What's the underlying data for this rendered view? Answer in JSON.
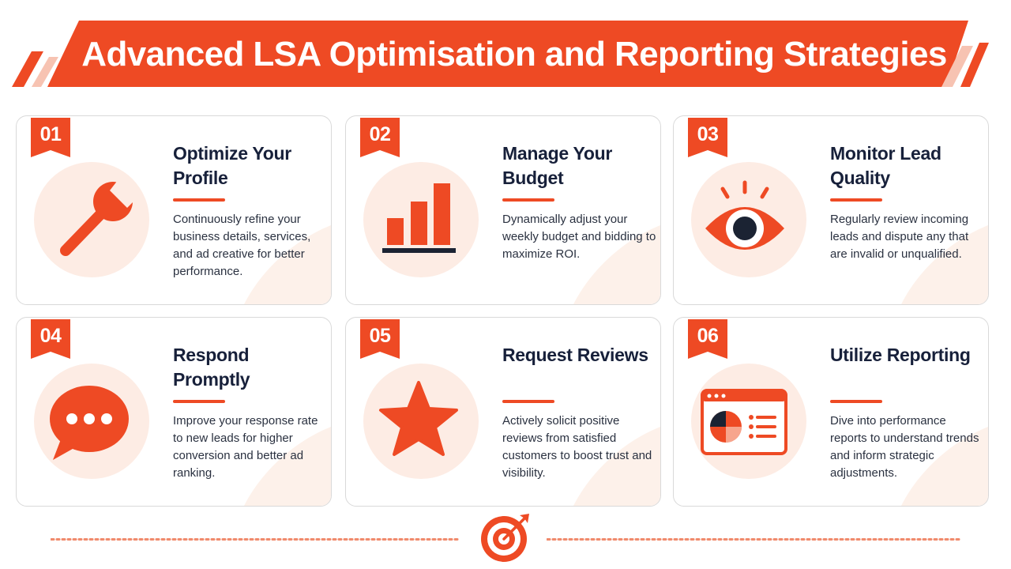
{
  "header": {
    "title": "Advanced LSA Optimisation and Reporting Strategies"
  },
  "colors": {
    "accent": "#ee4a24",
    "accent_light": "#fdece4",
    "text_dark": "#17203a",
    "text_body": "#2a3140",
    "navy": "#1b2333"
  },
  "cards": [
    {
      "number": "01",
      "title": "Optimize Your Profile",
      "description": "Continuously refine your business details, services, and ad creative for better performance.",
      "icon": "wrench-icon"
    },
    {
      "number": "02",
      "title": "Manage Your Budget",
      "description": "Dynamically adjust your weekly budget and bidding to maximize ROI.",
      "icon": "bar-chart-icon"
    },
    {
      "number": "03",
      "title": "Monitor Lead Quality",
      "description": "Regularly review incoming leads and dispute any that are invalid or unqualified.",
      "icon": "eye-icon"
    },
    {
      "number": "04",
      "title": "Respond Promptly",
      "description": "Improve your response rate to new leads for higher conversion and better ad ranking.",
      "icon": "chat-bubble-icon"
    },
    {
      "number": "05",
      "title": "Request Reviews",
      "description": "Actively solicit positive reviews from satisfied customers to boost trust and visibility.",
      "icon": "star-icon"
    },
    {
      "number": "06",
      "title": "Utilize Reporting",
      "description": "Dive into performance reports to understand trends and inform strategic adjustments.",
      "icon": "report-dashboard-icon"
    }
  ],
  "footer": {
    "icon": "target-icon"
  }
}
